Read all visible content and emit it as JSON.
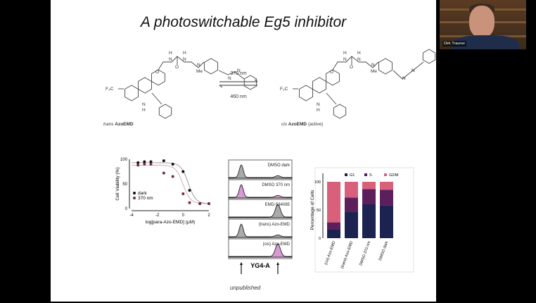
{
  "slide": {
    "title": "A photoswitchable Eg5 inhibitor",
    "scheme": {
      "left_label_italic": "trans",
      "left_label_bold": "AzoEMD",
      "right_label_italic": "cis",
      "right_label_bold": "AzoEMD",
      "right_label_suffix": "(active)",
      "forward": "370 nm",
      "reverse": "460 nm",
      "atoms": {
        "cf3": "F₃C",
        "o": "O",
        "n": "N",
        "h": "H",
        "me": "Me"
      }
    },
    "footnote": "unpublished"
  },
  "participant": {
    "name": "Dirk Trauner"
  },
  "chart_data": [
    {
      "type": "scatter",
      "xlabel": "log[para-Azo-EMD] (μM)",
      "ylabel": "Cell Viability (%)",
      "xlim": [
        -4,
        2
      ],
      "ylim": [
        0,
        100
      ],
      "xticks": [
        "-4",
        "-2",
        "0",
        "2"
      ],
      "yticks": [
        "0",
        "50",
        "100"
      ],
      "legend_position": "bottom-left",
      "series": [
        {
          "name": "dark",
          "color": "#111111",
          "x": [
            -3.5,
            -3,
            -2.5,
            -1.5,
            -0.8,
            0,
            0.5,
            1.3,
            2
          ],
          "y": [
            93,
            95,
            95,
            97,
            90,
            75,
            37,
            10,
            10
          ]
        },
        {
          "name": "370 nm",
          "color": "#7a2a4a",
          "x": [
            -3.5,
            -3,
            -2.5,
            -1.5,
            -0.8,
            0,
            0.5,
            1.3,
            2
          ],
          "y": [
            88,
            90,
            90,
            72,
            65,
            30,
            12,
            10,
            10
          ]
        }
      ]
    },
    {
      "type": "histogram",
      "xlabel": "YG4-A",
      "markers": [
        "G1",
        "G2/M"
      ],
      "rows": [
        {
          "label": "DMSO dark",
          "fill": "#aaaaaa",
          "g1": 1.0,
          "g2": 0.15
        },
        {
          "label": "DMSO 370 nm",
          "fill": "#d79ad3",
          "g1": 1.0,
          "g2": 0.15
        },
        {
          "label": "EMD-534085",
          "fill": "#aaaaaa",
          "g1": 0.0,
          "g2": 1.0
        },
        {
          "label": "(trans) Azo-EMD",
          "fill": "#aaaaaa",
          "g1": 1.0,
          "g2": 0.15
        },
        {
          "label": "(cis) Azo-EMD",
          "fill": "#d79ad3",
          "g1": 0.0,
          "g2": 1.0
        }
      ]
    },
    {
      "type": "bar",
      "stacked": true,
      "ylabel": "Percentage of Cells",
      "ylim": [
        0,
        100
      ],
      "yticks": [
        "0",
        "50",
        "100"
      ],
      "legend_position": "top",
      "categories": [
        "(cis) Azo-EMD",
        "(trans) Azo-EMD",
        "DMSO 370 nm",
        "DMSO dark"
      ],
      "series": [
        {
          "name": "G1",
          "color": "#1c2350",
          "values": [
            15,
            47,
            60,
            58
          ]
        },
        {
          "name": "S",
          "color": "#5c1f5c",
          "values": [
            13,
            25,
            27,
            28
          ]
        },
        {
          "name": "G2/M",
          "color": "#d8607a",
          "values": [
            72,
            28,
            13,
            14
          ]
        }
      ]
    }
  ]
}
